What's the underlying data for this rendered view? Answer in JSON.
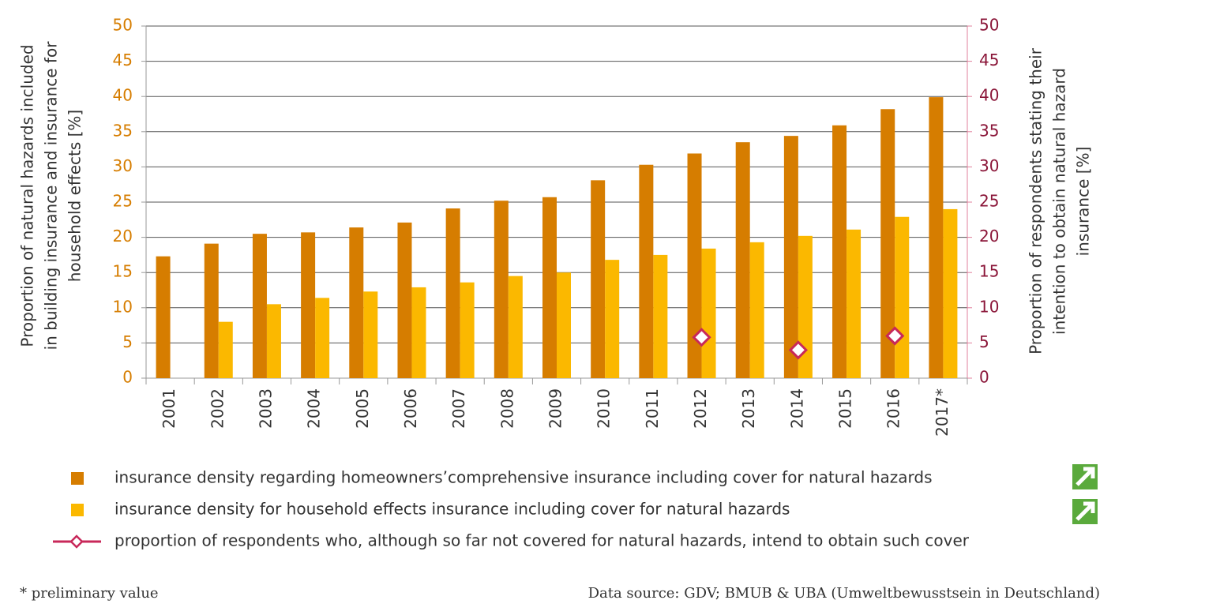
{
  "chart_data": {
    "type": "bar",
    "ylabel": [
      "Proportion of natural hazards included",
      "in building insurance and insurance for",
      "household effects [%]"
    ],
    "y2label": [
      "Proportion of respondents stating their",
      "intention to obtain natural hazard",
      "insurance [%]"
    ],
    "categories": [
      "2001",
      "2002",
      "2003",
      "2004",
      "2005",
      "2006",
      "2007",
      "2008",
      "2009",
      "2010",
      "2011",
      "2012",
      "2013",
      "2014",
      "2015",
      "2016",
      "2017*"
    ],
    "series": [
      {
        "name": "insurance density regarding homeowners’comprehensive insurance including cover for natural hazards",
        "color": "#d67d00",
        "values": [
          17.3,
          19.1,
          20.5,
          20.7,
          21.4,
          22.1,
          24.1,
          25.2,
          25.7,
          28.1,
          30.3,
          31.9,
          33.5,
          34.4,
          35.9,
          38.2,
          39.9
        ]
      },
      {
        "name": "insurance density for household effects insurance including cover for natural hazards",
        "color": "#fbb800",
        "values": [
          null,
          8,
          10.5,
          11.4,
          12.3,
          12.9,
          13.6,
          14.5,
          15,
          16.8,
          17.5,
          18.4,
          19.3,
          20.2,
          21.1,
          22.9,
          24
        ]
      },
      {
        "name": "proportion of respondents who, although so far not covered for natural hazards, intend to obtain such cover",
        "color": "#c8285a",
        "axis": "y2",
        "type": "line",
        "values": [
          null,
          null,
          null,
          null,
          null,
          null,
          null,
          null,
          null,
          null,
          null,
          5.8,
          null,
          4,
          null,
          6,
          null
        ]
      }
    ],
    "ylim": [
      0,
      50
    ],
    "yticks": [
      0,
      5,
      10,
      15,
      20,
      25,
      30,
      35,
      40,
      45,
      50
    ],
    "y2lim": [
      0,
      50
    ],
    "y2ticks": [
      0,
      5,
      10,
      15,
      20,
      25,
      30,
      35,
      40,
      45,
      50
    ],
    "grid": true,
    "footnote": "* preliminary value",
    "source": "Data source: GDV; BMUB & UBA (Umweltbewusstsein in Deutschland)"
  }
}
